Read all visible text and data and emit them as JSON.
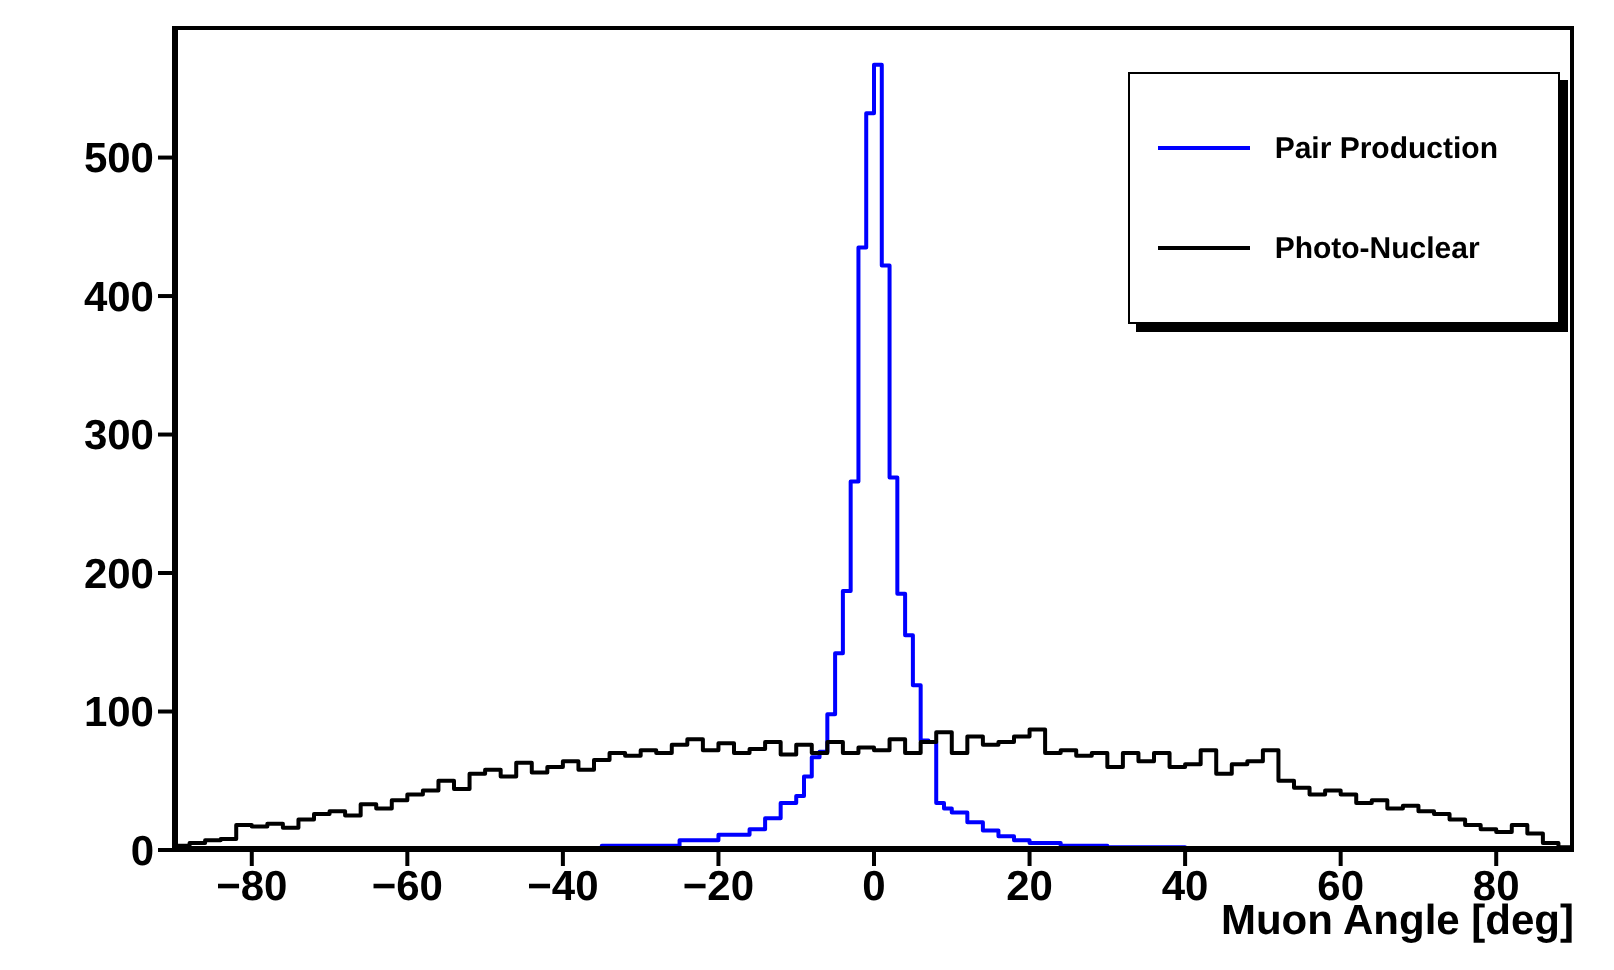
{
  "chart_data": {
    "type": "step",
    "xlabel": "Muon Angle [deg]",
    "xlim": [
      -90,
      90
    ],
    "xticks": [
      -80,
      -60,
      -40,
      -20,
      0,
      20,
      40,
      60,
      80
    ],
    "ylim": [
      0,
      595
    ],
    "yticks": [
      0,
      100,
      200,
      300,
      400,
      500
    ],
    "grid": false,
    "legend": "top right",
    "marker": "none",
    "line_style": "solid",
    "series": [
      {
        "name": "Pair Production",
        "color": "#0000ff",
        "x": [
          -90,
          -35,
          -25,
          -20,
          -16,
          -14,
          -12,
          -10,
          -9,
          -8,
          -7,
          -6,
          -5,
          -4,
          -3,
          -2,
          -1,
          0,
          1,
          2,
          3,
          4,
          5,
          6,
          7,
          8,
          9,
          10,
          12,
          14,
          16,
          18,
          20,
          24,
          30,
          40,
          90
        ],
        "values": [
          0,
          3,
          7,
          11,
          15,
          23,
          34,
          39,
          53,
          67,
          71,
          98,
          142,
          187,
          266,
          435,
          532,
          567,
          422,
          269,
          185,
          155,
          119,
          79,
          78,
          34,
          30,
          27,
          20,
          14,
          10,
          7,
          5,
          3,
          2,
          0,
          0
        ]
      },
      {
        "name": "Photo-Nuclear",
        "color": "#000000",
        "x": [
          -90,
          -88,
          -86,
          -84,
          -82,
          -80,
          -78,
          -76,
          -74,
          -72,
          -70,
          -68,
          -66,
          -64,
          -62,
          -60,
          -58,
          -56,
          -54,
          -52,
          -50,
          -48,
          -46,
          -44,
          -42,
          -40,
          -38,
          -36,
          -34,
          -32,
          -30,
          -28,
          -26,
          -24,
          -22,
          -20,
          -18,
          -16,
          -14,
          -12,
          -10,
          -8,
          -6,
          -4,
          -2,
          0,
          2,
          4,
          6,
          8,
          10,
          12,
          14,
          16,
          18,
          20,
          22,
          24,
          26,
          28,
          30,
          32,
          34,
          36,
          38,
          40,
          42,
          44,
          46,
          48,
          50,
          52,
          54,
          56,
          58,
          60,
          62,
          64,
          66,
          68,
          70,
          72,
          74,
          76,
          78,
          80,
          82,
          84,
          86,
          88,
          90
        ],
        "values": [
          3,
          5,
          7,
          8,
          18,
          17,
          19,
          16,
          22,
          26,
          28,
          25,
          33,
          30,
          36,
          40,
          43,
          50,
          44,
          55,
          58,
          53,
          63,
          56,
          60,
          64,
          58,
          65,
          70,
          68,
          72,
          70,
          76,
          80,
          72,
          77,
          70,
          73,
          78,
          69,
          76,
          70,
          78,
          70,
          74,
          72,
          80,
          70,
          78,
          85,
          70,
          82,
          76,
          78,
          82,
          87,
          70,
          72,
          68,
          70,
          60,
          70,
          64,
          70,
          60,
          62,
          72,
          55,
          62,
          64,
          72,
          50,
          45,
          40,
          43,
          40,
          34,
          36,
          30,
          32,
          28,
          26,
          22,
          18,
          15,
          13,
          18,
          12,
          5,
          2,
          2
        ]
      }
    ]
  }
}
